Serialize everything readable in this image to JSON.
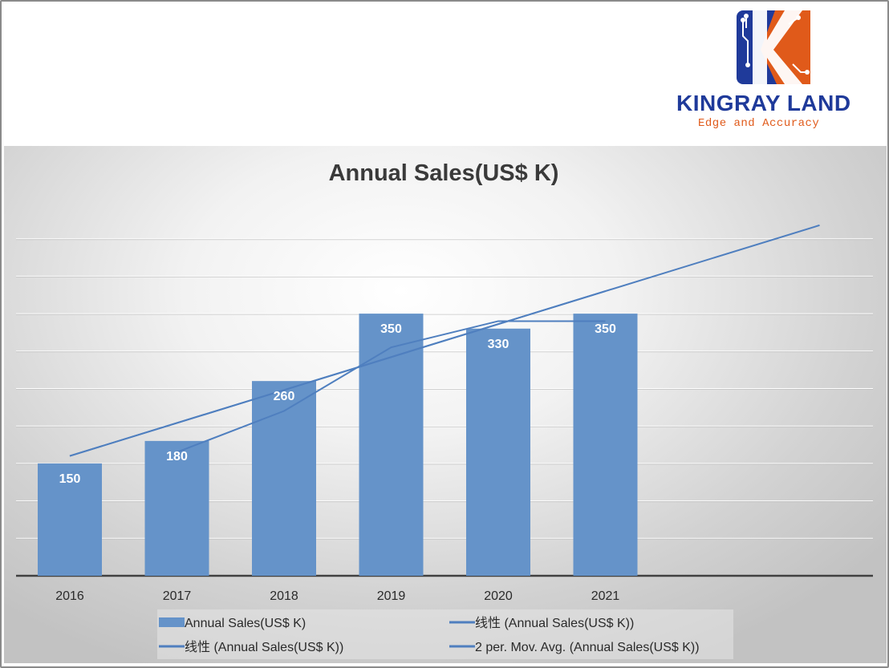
{
  "brand": {
    "name": "KINGRAY LAND",
    "tagline": "Edge and Accuracy",
    "colors": {
      "navy": "#1f3a9a",
      "orange": "#e05a1a"
    }
  },
  "chart_data": {
    "type": "bar",
    "title": "Annual Sales(US$ K)",
    "categories": [
      "2016",
      "2017",
      "2018",
      "2019",
      "2020",
      "2021"
    ],
    "series": [
      {
        "name": "Annual Sales(US$ K)",
        "kind": "bar",
        "values": [
          150,
          180,
          260,
          350,
          330,
          350
        ],
        "color": "#6593c9"
      },
      {
        "name": "线性 (Annual Sales(US$ K))",
        "kind": "trendline-linear",
        "color": "#4f7fbf"
      },
      {
        "name": "线性 (Annual Sales(US$ K))",
        "kind": "trendline-linear",
        "color": "#4f7fbf",
        "forecast_periods": 2
      },
      {
        "name": "2 per. Mov. Avg. (Annual Sales(US$ K))",
        "kind": "moving-average",
        "period": 2,
        "color": "#4f7fbf"
      }
    ],
    "data_labels": [
      "150",
      "180",
      "260",
      "350",
      "330",
      "350"
    ],
    "ylim": [
      0,
      450
    ],
    "grid": true,
    "legend": "bottom"
  }
}
